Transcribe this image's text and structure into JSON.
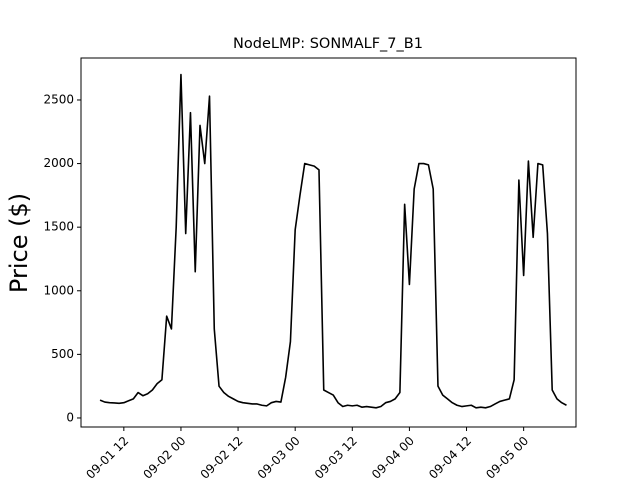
{
  "chart_data": {
    "type": "line",
    "title": "NodeLMP: SONMALF_7_B1",
    "y_label": "Price ($)",
    "x": [
      "09-01 07",
      "09-01 08",
      "09-01 09",
      "09-01 10",
      "09-01 11",
      "09-01 12",
      "09-01 13",
      "09-01 14",
      "09-01 15",
      "09-01 16",
      "09-01 17",
      "09-01 18",
      "09-01 19",
      "09-01 20",
      "09-01 21",
      "09-01 22",
      "09-01 23",
      "09-02 00",
      "09-02 01",
      "09-02 02",
      "09-02 03",
      "09-02 04",
      "09-02 05",
      "09-02 06",
      "09-02 07",
      "09-02 08",
      "09-02 09",
      "09-02 10",
      "09-02 11",
      "09-02 12",
      "09-02 13",
      "09-02 14",
      "09-02 15",
      "09-02 16",
      "09-02 17",
      "09-02 18",
      "09-02 19",
      "09-02 20",
      "09-02 21",
      "09-02 22",
      "09-02 23",
      "09-03 00",
      "09-03 01",
      "09-03 02",
      "09-03 03",
      "09-03 04",
      "09-03 05",
      "09-03 06",
      "09-03 07",
      "09-03 08",
      "09-03 09",
      "09-03 10",
      "09-03 11",
      "09-03 12",
      "09-03 13",
      "09-03 14",
      "09-03 15",
      "09-03 16",
      "09-03 17",
      "09-03 18",
      "09-03 19",
      "09-03 20",
      "09-03 21",
      "09-03 22",
      "09-03 23",
      "09-04 00",
      "09-04 01",
      "09-04 02",
      "09-04 03",
      "09-04 04",
      "09-04 05",
      "09-04 06",
      "09-04 07",
      "09-04 08",
      "09-04 09",
      "09-04 10",
      "09-04 11",
      "09-04 12",
      "09-04 13",
      "09-04 14",
      "09-04 15",
      "09-04 16",
      "09-04 17",
      "09-04 18",
      "09-04 19",
      "09-04 20",
      "09-04 21",
      "09-04 22",
      "09-04 23",
      "09-05 00",
      "09-05 01",
      "09-05 02",
      "09-05 03",
      "09-05 04",
      "09-05 05",
      "09-05 06",
      "09-05 07",
      "09-05 08",
      "09-05 09"
    ],
    "series": [
      {
        "name": "Price",
        "color": "#000000",
        "values": [
          140,
          125,
          120,
          118,
          115,
          120,
          135,
          150,
          200,
          175,
          190,
          220,
          270,
          300,
          800,
          700,
          1500,
          2700,
          1450,
          2400,
          1150,
          2300,
          2000,
          2530,
          700,
          250,
          200,
          170,
          150,
          130,
          120,
          115,
          110,
          110,
          100,
          95,
          120,
          130,
          125,
          320,
          600,
          1480,
          1750,
          2000,
          1990,
          1980,
          1950,
          220,
          200,
          180,
          120,
          90,
          100,
          95,
          100,
          85,
          90,
          85,
          80,
          90,
          120,
          130,
          150,
          200,
          1680,
          1050,
          1800,
          2000,
          2000,
          1990,
          1800,
          250,
          180,
          150,
          120,
          100,
          90,
          95,
          100,
          80,
          85,
          80,
          90,
          110,
          130,
          140,
          150,
          300,
          1870,
          1120,
          2020,
          1420,
          2000,
          1990,
          1450,
          220,
          150,
          120,
          100
        ]
      }
    ],
    "xlim": [
      "09-01 03",
      "09-05 11"
    ],
    "xticks": [
      "09-01 12",
      "09-02 00",
      "09-02 12",
      "09-03 00",
      "09-03 12",
      "09-04 00",
      "09-04 12",
      "09-05 00"
    ],
    "ylim": [
      -71,
      2830
    ],
    "yticks": [
      0,
      500,
      1000,
      1500,
      2000,
      2500
    ]
  }
}
